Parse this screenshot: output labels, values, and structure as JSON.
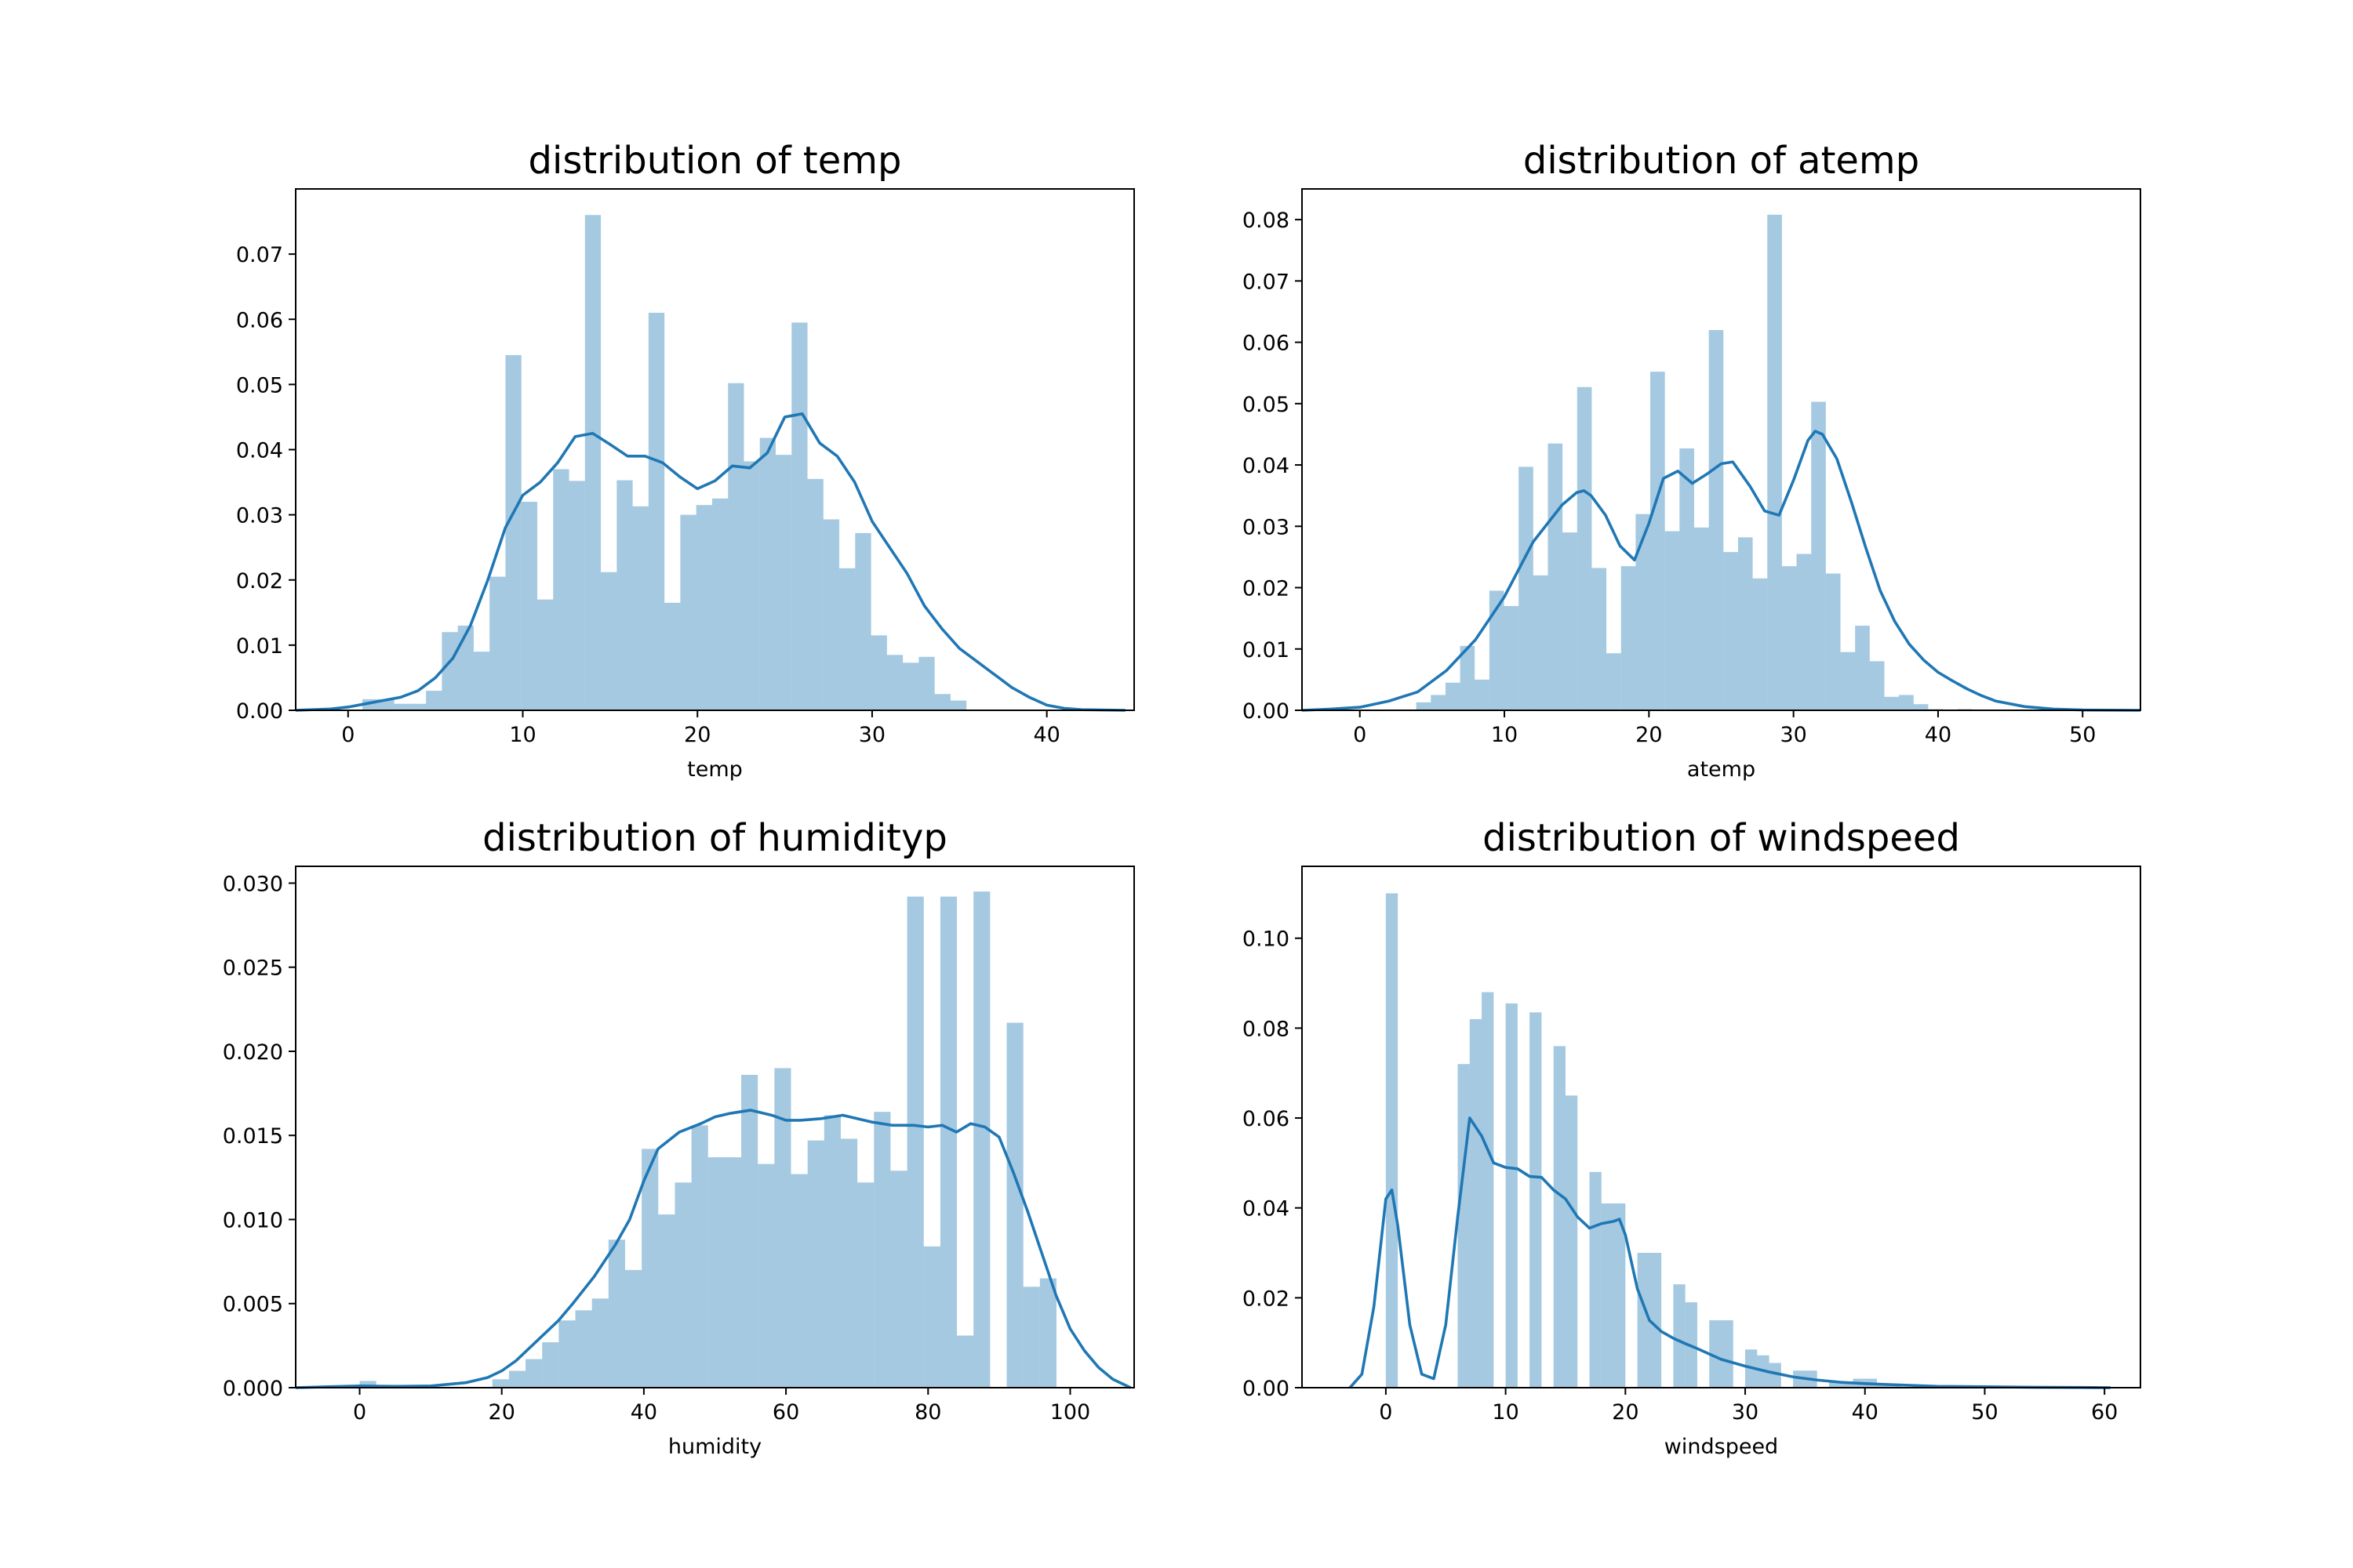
{
  "figure": {
    "colors": {
      "bar": "#1f77b4",
      "bar_opacity": 0.4,
      "kde": "#1f77b4"
    }
  },
  "chart_data": [
    {
      "type": "histogram",
      "title": "distribution of temp",
      "xlabel": "temp",
      "ylabel": "",
      "xlim": [
        -3,
        45
      ],
      "ylim": [
        0,
        0.08
      ],
      "xticks": [
        0,
        10,
        20,
        30,
        40
      ],
      "yticks": [
        0.0,
        0.01,
        0.02,
        0.03,
        0.04,
        0.05,
        0.06,
        0.07
      ],
      "ytick_decimals": 2,
      "grid": false,
      "bins": {
        "start": 0.82,
        "width": 0.91,
        "values": [
          0.0017,
          0.0017,
          0.001,
          0.001,
          0.003,
          0.012,
          0.013,
          0.009,
          0.0205,
          0.0545,
          0.032,
          0.017,
          0.037,
          0.0352,
          0.076,
          0.0212,
          0.0353,
          0.0313,
          0.061,
          0.0165,
          0.03,
          0.0315,
          0.0325,
          0.0502,
          0.0382,
          0.0418,
          0.0392,
          0.0595,
          0.0355,
          0.0293,
          0.0218,
          0.0272,
          0.0115,
          0.0085,
          0.0073,
          0.0082,
          0.0025,
          0.0015
        ]
      },
      "kde": {
        "x": [
          -3,
          -1,
          0,
          1,
          2,
          3,
          4,
          5,
          6,
          7,
          8,
          9,
          10,
          11,
          12,
          13,
          14,
          15,
          16,
          17,
          18,
          19,
          20,
          21,
          22,
          23,
          24,
          25,
          26,
          27,
          28,
          29,
          30,
          31,
          32,
          33,
          34,
          35,
          36,
          37,
          38,
          39,
          40,
          41,
          42,
          44.5
        ],
        "y": [
          0,
          0.0002,
          0.0005,
          0.001,
          0.0015,
          0.002,
          0.003,
          0.005,
          0.008,
          0.013,
          0.02,
          0.028,
          0.033,
          0.035,
          0.038,
          0.042,
          0.0425,
          0.0408,
          0.039,
          0.039,
          0.038,
          0.0358,
          0.034,
          0.0352,
          0.0375,
          0.0372,
          0.0395,
          0.045,
          0.0455,
          0.041,
          0.039,
          0.035,
          0.029,
          0.025,
          0.021,
          0.016,
          0.0125,
          0.0095,
          0.0075,
          0.0055,
          0.0035,
          0.002,
          0.0008,
          0.0003,
          0.0001,
          0
        ]
      }
    },
    {
      "type": "histogram",
      "title": "distribution of atemp",
      "xlabel": "atemp",
      "ylabel": "",
      "xlim": [
        -4,
        54
      ],
      "ylim": [
        0,
        0.085
      ],
      "xticks": [
        0,
        10,
        20,
        30,
        40,
        50
      ],
      "yticks": [
        0.0,
        0.01,
        0.02,
        0.03,
        0.04,
        0.05,
        0.06,
        0.07,
        0.08
      ],
      "ytick_decimals": 2,
      "grid": false,
      "bins": {
        "start": 3.9,
        "width": 1.012,
        "values": [
          0.0013,
          0.0025,
          0.0045,
          0.0105,
          0.005,
          0.0195,
          0.017,
          0.0397,
          0.022,
          0.0435,
          0.029,
          0.0527,
          0.0232,
          0.0093,
          0.0235,
          0.032,
          0.0552,
          0.0292,
          0.0427,
          0.0298,
          0.062,
          0.0258,
          0.0282,
          0.0215,
          0.0808,
          0.0235,
          0.0255,
          0.0503,
          0.0223,
          0.0095,
          0.0138,
          0.008,
          0.0022,
          0.0025,
          0.001,
          0.0002,
          0.0001,
          0.0002,
          0.0001
        ]
      },
      "kde": {
        "x": [
          -4,
          -2,
          0,
          2,
          4,
          6,
          8,
          10,
          12,
          13,
          14,
          15,
          15.5,
          16,
          17,
          18,
          19,
          20,
          21,
          22,
          23,
          24,
          25,
          25.8,
          27,
          28,
          29,
          30,
          31,
          31.5,
          32,
          33,
          34,
          35,
          36,
          37,
          38,
          39,
          40,
          41,
          42,
          43,
          44,
          46,
          48,
          50,
          54
        ],
        "y": [
          0,
          0.0002,
          0.0005,
          0.0015,
          0.003,
          0.0065,
          0.0115,
          0.0185,
          0.0275,
          0.0305,
          0.0335,
          0.0355,
          0.0358,
          0.035,
          0.0318,
          0.0268,
          0.0245,
          0.0305,
          0.0378,
          0.039,
          0.037,
          0.0385,
          0.0402,
          0.0405,
          0.0365,
          0.0325,
          0.0318,
          0.0375,
          0.044,
          0.0455,
          0.045,
          0.041,
          0.034,
          0.0265,
          0.0195,
          0.0145,
          0.0108,
          0.0082,
          0.0062,
          0.0048,
          0.0035,
          0.0024,
          0.0015,
          0.0006,
          0.0002,
          5e-05,
          0
        ]
      }
    },
    {
      "type": "histogram",
      "title": "distribution of humidityp",
      "xlabel": "humidity",
      "ylabel": "",
      "xlim": [
        -9,
        109
      ],
      "ylim": [
        0,
        0.031
      ],
      "xticks": [
        0,
        20,
        40,
        60,
        80,
        100
      ],
      "yticks": [
        0.0,
        0.005,
        0.01,
        0.015,
        0.02,
        0.025,
        0.03
      ],
      "ytick_decimals": 3,
      "grid": false,
      "bins": {
        "start": 0,
        "width": 2.335,
        "values": [
          0.0004,
          0,
          0,
          0,
          0,
          0,
          0,
          0,
          0.0005,
          0.001,
          0.0017,
          0.0027,
          0.004,
          0.0046,
          0.0053,
          0.0088,
          0.007,
          0.0142,
          0.0103,
          0.0122,
          0.0156,
          0.0137,
          0.0137,
          0.0186,
          0.0133,
          0.019,
          0.0127,
          0.0147,
          0.0162,
          0.0148,
          0.0122,
          0.0164,
          0.0129,
          0.0292,
          0.0084,
          0.0292,
          0.0031,
          0.0295,
          0,
          0.0217,
          0.006,
          0.0065,
          0
        ]
      },
      "kde": {
        "x": [
          -9,
          -5,
          0,
          5,
          10,
          15,
          18,
          20,
          22,
          25,
          28,
          30,
          33,
          36,
          38,
          40,
          42,
          45,
          48,
          50,
          52,
          55,
          58,
          60,
          62,
          65,
          68,
          70,
          72,
          75,
          78,
          80,
          82,
          84,
          86,
          88,
          90,
          92,
          94,
          96,
          98,
          100,
          102,
          104,
          106,
          108.5
        ],
        "y": [
          0,
          5e-05,
          0.0001,
          8e-05,
          0.0001,
          0.0003,
          0.0006,
          0.001,
          0.0016,
          0.0028,
          0.004,
          0.005,
          0.0066,
          0.0085,
          0.01,
          0.0123,
          0.0142,
          0.0152,
          0.0157,
          0.0161,
          0.0163,
          0.0165,
          0.0162,
          0.0159,
          0.0159,
          0.016,
          0.0162,
          0.016,
          0.0158,
          0.0156,
          0.0156,
          0.0155,
          0.0156,
          0.0152,
          0.0157,
          0.0155,
          0.0149,
          0.0128,
          0.0105,
          0.008,
          0.0055,
          0.0035,
          0.0022,
          0.0012,
          0.0005,
          0
        ]
      }
    },
    {
      "type": "histogram",
      "title": "distribution of windspeed",
      "xlabel": "windspeed",
      "ylabel": "",
      "xlim": [
        -7,
        63
      ],
      "ylim": [
        0,
        0.116
      ],
      "xticks": [
        0,
        10,
        20,
        30,
        40,
        50,
        60
      ],
      "yticks": [
        0.0,
        0.02,
        0.04,
        0.06,
        0.08,
        0.1
      ],
      "ytick_decimals": 2,
      "grid": false,
      "bins": {
        "start": 0,
        "width": 1.0,
        "values": [
          0.11,
          0,
          0,
          0,
          0,
          0,
          0.072,
          0.082,
          0.088,
          0,
          0.0855,
          0,
          0.0835,
          0,
          0.076,
          0.065,
          0,
          0.048,
          0.041,
          0.041,
          0,
          0.03,
          0.03,
          0,
          0.023,
          0.019,
          0,
          0.015,
          0.015,
          0,
          0.0085,
          0.0072,
          0.0055,
          0,
          0.0038,
          0.0038,
          0,
          0.0014,
          0.001,
          0.002,
          0.002,
          0.0008,
          0.0008,
          0,
          0,
          0.0002,
          0.0002,
          0,
          0,
          0.0001,
          0.0001,
          0,
          0,
          0,
          0,
          0,
          0,
          0,
          0,
          0,
          0.0001
        ]
      },
      "kde": {
        "x": [
          -3,
          -2,
          -1,
          0,
          0.5,
          1,
          2,
          3,
          4,
          5,
          6,
          7,
          8,
          9,
          10,
          11,
          12,
          13,
          14,
          15,
          16,
          17,
          18,
          19,
          19.5,
          20,
          21,
          22,
          23,
          24,
          25,
          26,
          27,
          28,
          30,
          32,
          34,
          36,
          38,
          40,
          42,
          44,
          46,
          50,
          54,
          58,
          60.5
        ],
        "y": [
          0,
          0.003,
          0.018,
          0.042,
          0.044,
          0.036,
          0.014,
          0.003,
          0.002,
          0.014,
          0.038,
          0.06,
          0.056,
          0.05,
          0.049,
          0.0487,
          0.047,
          0.0468,
          0.044,
          0.042,
          0.038,
          0.0355,
          0.0365,
          0.037,
          0.0375,
          0.034,
          0.022,
          0.015,
          0.0125,
          0.011,
          0.0098,
          0.0087,
          0.0075,
          0.0063,
          0.0048,
          0.0035,
          0.0024,
          0.0017,
          0.0012,
          0.0009,
          0.0007,
          0.0005,
          0.0003,
          0.0002,
          0.0001,
          5e-05,
          0
        ]
      }
    }
  ]
}
